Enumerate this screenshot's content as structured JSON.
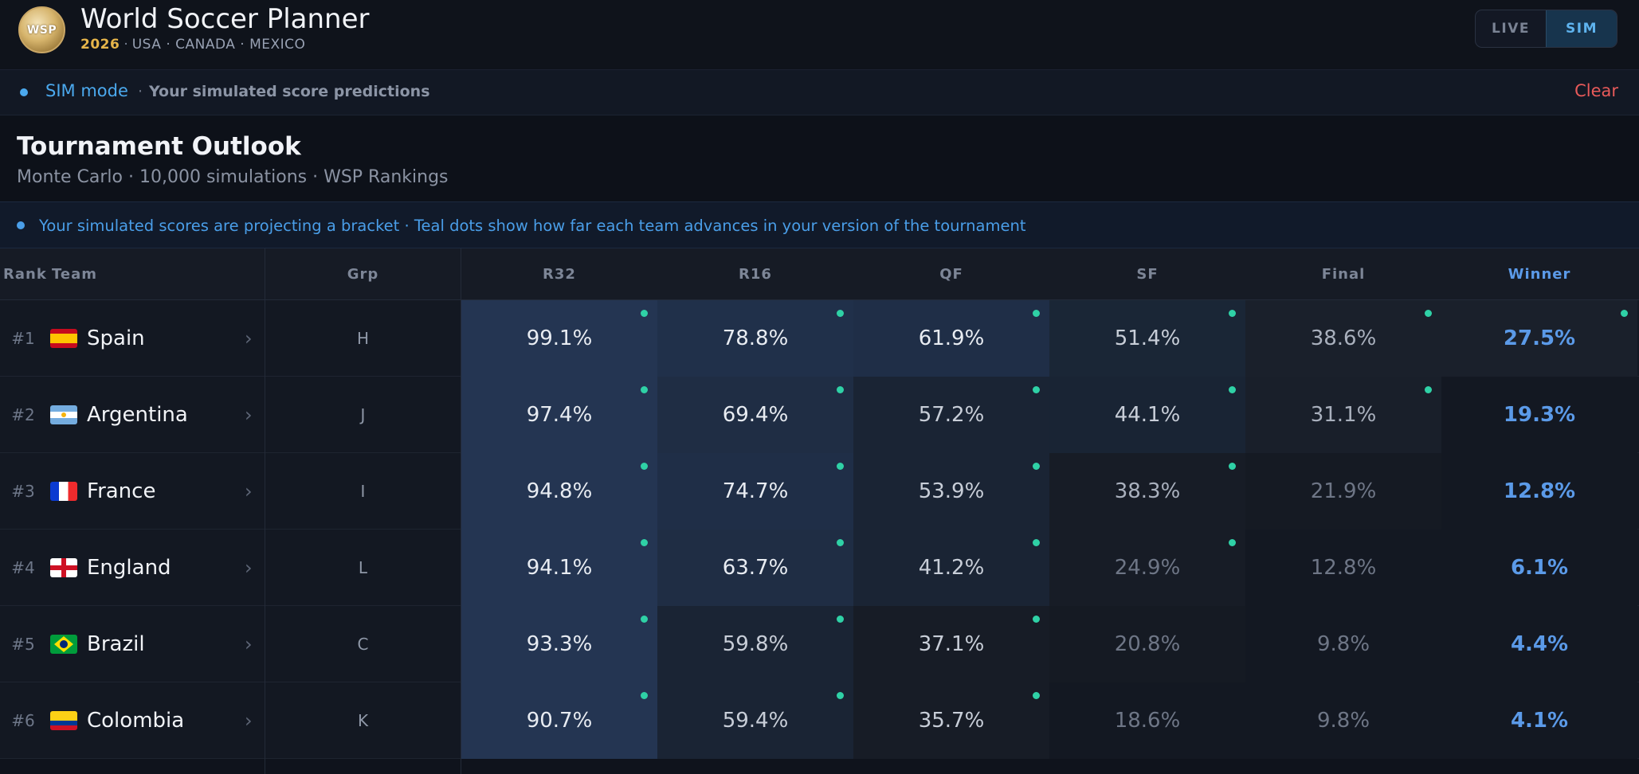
{
  "header": {
    "logo_text": "WSP",
    "title": "World Soccer Planner",
    "year": "2026",
    "hosts": "USA · CANADA · MEXICO",
    "modes": {
      "live": "LIVE",
      "sim": "SIM"
    }
  },
  "sim_banner": {
    "label": "SIM mode",
    "separator": "·",
    "description": "Your simulated score predictions",
    "clear_label": "Clear"
  },
  "outlook": {
    "title": "Tournament Outlook",
    "subtitle": "Monte Carlo · 10,000 simulations · WSP Rankings"
  },
  "info_bar": {
    "text": "Your simulated scores are projecting a bracket · Teal dots show how far each team advances in your version of the tournament"
  },
  "table": {
    "headers": {
      "rank": "Rank",
      "team": "Team",
      "group": "Grp",
      "r32": "R32",
      "r16": "R16",
      "qf": "QF",
      "sf": "SF",
      "final": "Final",
      "winner": "Winner"
    },
    "rows": [
      {
        "rank": "#1",
        "flag": "flag-es",
        "team": "Spain",
        "group": "H",
        "values": [
          "99.1%",
          "78.8%",
          "61.9%",
          "51.4%",
          "38.6%",
          "27.5%"
        ],
        "colors": [
          "#243552",
          "#20304a",
          "#1f2e47",
          "#1a2636",
          "#1a202b",
          "#1a202b"
        ],
        "text_colors": [
          "#e8ecf2",
          "#e8ecf2",
          "#e8ecf2",
          "#c8ced8",
          "#a9b0bd",
          "#5b9ae8"
        ],
        "dots": [
          true,
          true,
          true,
          true,
          true,
          true
        ]
      },
      {
        "rank": "#2",
        "flag": "flag-ar",
        "team": "Argentina",
        "group": "J",
        "values": [
          "97.4%",
          "69.4%",
          "57.2%",
          "44.1%",
          "31.1%",
          "19.3%"
        ],
        "colors": [
          "#243552",
          "#1f2d44",
          "#1a2434",
          "#192434",
          "#191f2a",
          "#131822"
        ],
        "text_colors": [
          "#e8ecf2",
          "#e8ecf2",
          "#c8ced8",
          "#c8ced8",
          "#a9b0bd",
          "#5b9ae8"
        ],
        "dots": [
          true,
          true,
          true,
          true,
          true,
          false
        ]
      },
      {
        "rank": "#3",
        "flag": "flag-fr",
        "team": "France",
        "group": "I",
        "values": [
          "94.8%",
          "74.7%",
          "53.9%",
          "38.3%",
          "21.9%",
          "12.8%"
        ],
        "colors": [
          "#243552",
          "#1f2e47",
          "#1a2434",
          "#171c26",
          "#151a23",
          "#131822"
        ],
        "text_colors": [
          "#e8ecf2",
          "#e8ecf2",
          "#c8ced8",
          "#a9b0bd",
          "#6e7686",
          "#5b9ae8"
        ],
        "dots": [
          true,
          true,
          true,
          true,
          false,
          false
        ]
      },
      {
        "rank": "#4",
        "flag": "flag-en",
        "team": "England",
        "group": "L",
        "values": [
          "94.1%",
          "63.7%",
          "41.2%",
          "24.9%",
          "12.8%",
          "6.1%"
        ],
        "colors": [
          "#243552",
          "#1f2d44",
          "#1a2434",
          "#171c26",
          "#131822",
          "#131822"
        ],
        "text_colors": [
          "#e8ecf2",
          "#e8ecf2",
          "#c8ced8",
          "#6e7686",
          "#6e7686",
          "#5b9ae8"
        ],
        "dots": [
          true,
          true,
          true,
          true,
          false,
          false
        ]
      },
      {
        "rank": "#5",
        "flag": "flag-br",
        "team": "Brazil",
        "group": "C",
        "values": [
          "93.3%",
          "59.8%",
          "37.1%",
          "20.8%",
          "9.8%",
          "4.4%"
        ],
        "colors": [
          "#243552",
          "#1a2434",
          "#171c26",
          "#151a23",
          "#131822",
          "#131822"
        ],
        "text_colors": [
          "#e8ecf2",
          "#c8ced8",
          "#c8ced8",
          "#6e7686",
          "#6e7686",
          "#5b9ae8"
        ],
        "dots": [
          true,
          true,
          true,
          false,
          false,
          false
        ]
      },
      {
        "rank": "#6",
        "flag": "flag-co",
        "team": "Colombia",
        "group": "K",
        "values": [
          "90.7%",
          "59.4%",
          "35.7%",
          "18.6%",
          "9.8%",
          "4.1%"
        ],
        "colors": [
          "#243552",
          "#1a2434",
          "#171c26",
          "#131822",
          "#131822",
          "#131822"
        ],
        "text_colors": [
          "#e8ecf2",
          "#c8ced8",
          "#c8ced8",
          "#6e7686",
          "#6e7686",
          "#5b9ae8"
        ],
        "dots": [
          true,
          true,
          true,
          false,
          false,
          false
        ]
      }
    ]
  }
}
